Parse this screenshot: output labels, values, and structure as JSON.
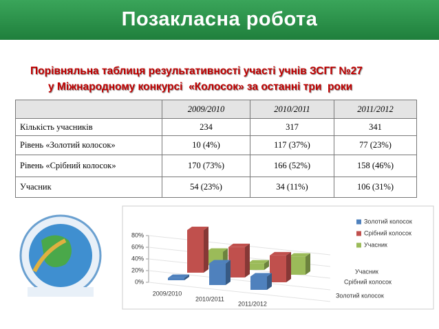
{
  "header": {
    "title": "Позакласна робота",
    "subtitle": [
      "Порівняльна таблиця результативності участі учнів ЗСГГ №27",
      "у Міжнародному конкурсі  «Колосок» за останні три  роки"
    ]
  },
  "table": {
    "columns": [
      "2009/2010",
      "2010/2011",
      "2011/2012"
    ],
    "rows": [
      {
        "label": "Кількість учасників",
        "cells": [
          "234",
          "317",
          "341"
        ]
      },
      {
        "label": "Рівень «Золотий колосок»",
        "cells": [
          "10 (4%)",
          "117 (37%)",
          "77 (23%)"
        ]
      },
      {
        "label": "Рівень «Срібний колосок»",
        "cells": [
          "170 (73%)",
          "166 (52%)",
          "158 (46%)"
        ]
      },
      {
        "label": "Учасник",
        "cells": [
          "54 (23%)",
          "34 (11%)",
          "106 (31%)"
        ]
      }
    ]
  },
  "chart_data": {
    "type": "bar3d",
    "categories": [
      "2009/2010",
      "2010/2011",
      "2011/2012"
    ],
    "series": [
      {
        "name": "Золотий колосок",
        "color": "#4f81bd",
        "values": [
          4,
          37,
          23
        ]
      },
      {
        "name": "Срібний колосок",
        "color": "#c0504d",
        "values": [
          73,
          52,
          46
        ]
      },
      {
        "name": "Учасник",
        "color": "#9bbb59",
        "values": [
          23,
          11,
          31
        ]
      }
    ],
    "ylim": [
      0,
      80
    ],
    "yticks": [
      {
        "value": 0,
        "label": "0%"
      },
      {
        "value": 20,
        "label": "20%"
      },
      {
        "value": 40,
        "label": "40%"
      },
      {
        "value": 60,
        "label": "60%"
      },
      {
        "value": 80,
        "label": "80%"
      }
    ],
    "legend": "top-right"
  }
}
